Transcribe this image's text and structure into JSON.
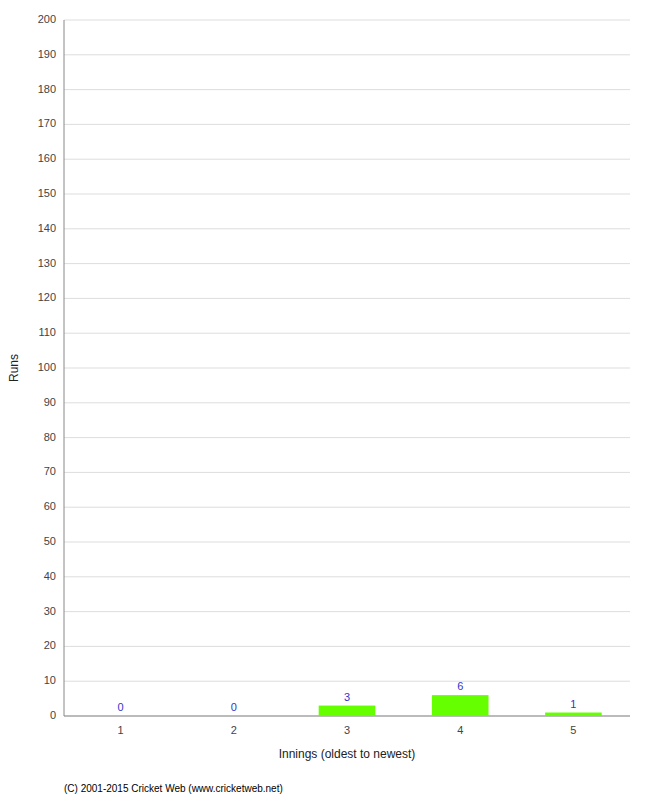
{
  "chart_data": {
    "type": "bar",
    "xlabel": "Innings (oldest to newest)",
    "ylabel": "Runs",
    "categories": [
      1,
      2,
      3,
      4,
      5
    ],
    "values": [
      0,
      0,
      3,
      6,
      1
    ],
    "color": "#66ff00",
    "ylim": [
      0,
      200
    ],
    "yticks": [
      0,
      10,
      20,
      30,
      40,
      50,
      60,
      70,
      80,
      90,
      100,
      110,
      120,
      130,
      140,
      150,
      160,
      170,
      180,
      190,
      200
    ],
    "grid": true,
    "data_labels": true,
    "annotations": [
      "(C) 2001-2015 Cricket Web (www.cricketweb.net)"
    ]
  }
}
